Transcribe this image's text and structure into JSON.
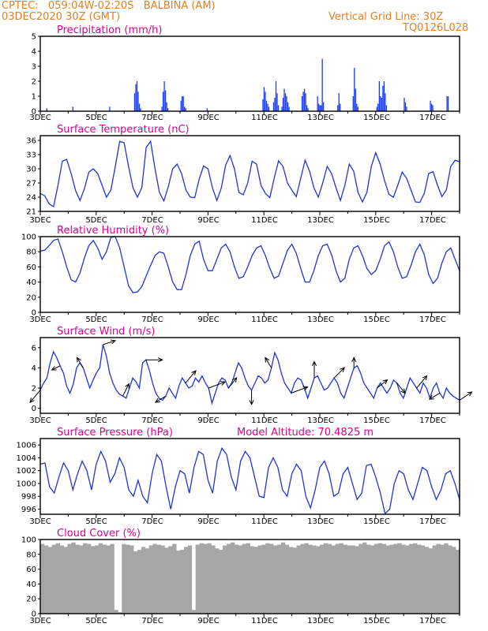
{
  "header": {
    "line1": "CPTEC:   059:04W-02:20S   BALBINA (AM)",
    "line2": "03DEC2020 30Z (GMT)",
    "grid_note": "Vertical Grid Line: 30Z",
    "code": "TQ0126L028"
  },
  "chart_data": [
    {
      "type": "bar",
      "title": "Precipitation (mm/h)",
      "x_labels": [
        "3DEC",
        "5DEC",
        "7DEC",
        "9DEC",
        "11DEC",
        "13DEC",
        "15DEC",
        "17DEC"
      ],
      "y_ticks": [
        0,
        1,
        2,
        3,
        4,
        5
      ],
      "ylim": [
        0,
        5
      ],
      "color": "#1a3cff",
      "values": [
        0,
        0,
        0,
        0,
        0,
        0.2,
        0,
        0,
        0,
        0,
        0,
        0,
        0,
        0,
        0,
        0,
        0,
        0,
        0,
        0,
        0,
        0,
        0,
        0,
        0,
        0,
        0,
        0.3,
        0,
        0,
        0,
        0,
        0,
        0,
        0,
        0,
        0,
        0,
        0,
        0,
        0,
        0,
        0,
        0,
        0,
        0,
        0,
        0,
        0,
        0,
        0,
        0,
        0,
        0,
        0,
        0,
        0,
        0,
        0.3,
        0,
        0,
        0,
        0,
        0,
        0,
        0,
        0,
        0,
        0,
        0,
        0,
        0,
        0,
        0,
        0,
        0,
        0,
        0,
        0,
        1.2,
        1.8,
        2.0,
        1.3,
        0.5,
        0.2,
        0,
        0,
        0,
        0,
        0,
        0,
        0,
        0,
        0,
        0,
        0,
        0,
        0,
        0,
        0,
        0,
        0,
        0.3,
        1.3,
        2.0,
        1.4,
        0.6,
        0.2,
        0,
        0,
        0,
        0,
        0,
        0,
        0,
        0,
        0,
        0,
        0.7,
        1.0,
        1.0,
        0.3,
        0.2,
        0,
        0,
        0,
        0,
        0,
        0,
        0,
        0,
        0,
        0,
        0,
        0,
        0,
        0,
        0,
        0,
        0,
        0.2,
        0,
        0,
        0,
        0,
        0,
        0,
        0,
        0,
        0,
        0,
        0,
        0,
        0,
        0,
        0,
        0,
        0,
        0,
        0,
        0,
        0,
        0,
        0,
        0,
        0,
        0,
        0,
        0,
        0,
        0,
        0,
        0,
        0,
        0,
        0,
        0,
        0,
        0,
        0,
        0,
        0,
        0,
        0,
        0,
        0,
        0,
        0.8,
        1.6,
        1.3,
        0.7,
        0.5,
        0.3,
        0,
        0,
        0,
        0.6,
        0.9,
        2.0,
        1.2,
        0.4,
        0,
        0,
        0.3,
        0.9,
        1.5,
        1.2,
        1.0,
        0.6,
        0.3,
        0,
        0,
        0,
        0,
        0,
        0,
        0,
        0,
        0,
        0,
        1.0,
        1.3,
        1.5,
        1.2,
        0.4,
        0.2,
        0,
        0,
        0,
        0,
        0,
        0,
        0,
        1.0,
        0.5,
        0.4,
        0.4,
        3.5,
        0.6,
        0,
        0,
        0,
        0,
        0,
        0,
        0,
        0,
        0,
        0,
        0,
        0.4,
        1.2,
        0.5,
        0,
        0,
        0,
        0,
        0,
        0,
        0,
        0,
        0,
        0,
        1.0,
        2.9,
        1.5,
        0.5,
        0.3,
        0,
        0,
        0,
        0,
        0,
        0,
        0,
        0,
        0,
        0,
        0,
        0,
        0,
        0,
        0,
        0.3,
        0.5,
        2.0,
        1.0,
        0.9,
        1.7,
        2.0,
        1.2,
        0.4,
        0,
        0,
        0,
        0,
        0,
        0,
        0,
        0,
        0,
        0,
        0,
        0,
        0,
        0,
        0.9,
        0.6,
        0.3,
        0,
        0,
        0,
        0,
        0,
        0,
        0,
        0,
        0,
        0,
        0,
        0,
        0,
        0,
        0,
        0,
        0,
        0,
        0,
        0.7,
        0.5,
        0.4,
        0,
        0,
        0,
        0,
        0,
        0,
        0,
        0,
        0,
        0,
        0,
        1.0,
        1.0,
        0,
        0,
        0,
        0,
        0,
        0,
        0,
        0,
        0
      ]
    },
    {
      "type": "line",
      "title": "Surface Temperature (nC)",
      "x_labels": [
        "3DEC",
        "5DEC",
        "7DEC",
        "9DEC",
        "11DEC",
        "13DEC",
        "15DEC",
        "17DEC"
      ],
      "y_ticks": [
        21,
        24,
        27,
        30,
        33,
        36
      ],
      "ylim": [
        21,
        37
      ],
      "color": "#2233dd",
      "values": [
        24.8,
        24.3,
        22.6,
        22.0,
        26.5,
        31.6,
        32.0,
        29.0,
        25.4,
        23.3,
        25.8,
        29.3,
        30.0,
        29.0,
        26.5,
        24.0,
        25.5,
        30.5,
        35.8,
        35.5,
        30.5,
        26.0,
        24.0,
        26.0,
        34.5,
        35.8,
        30.0,
        25.0,
        23.2,
        26.2,
        30.0,
        31.0,
        29.0,
        25.5,
        24.0,
        23.9,
        27.8,
        30.6,
        30.0,
        26.0,
        23.3,
        25.9,
        30.8,
        32.8,
        30.0,
        25.0,
        24.5,
        27.0,
        31.6,
        31.0,
        26.5,
        24.8,
        23.9,
        28.0,
        31.7,
        30.5,
        27.0,
        25.5,
        24.1,
        28.0,
        31.8,
        29.5,
        26.0,
        24.0,
        27.0,
        30.5,
        29.0,
        26.0,
        23.3,
        26.5,
        31.0,
        29.5,
        25.0,
        23.0,
        25.0,
        30.5,
        33.4,
        31.0,
        27.5,
        24.6,
        24.0,
        26.5,
        29.3,
        28.0,
        25.5,
        23.0,
        22.9,
        24.8,
        29.0,
        29.4,
        26.5,
        24.1,
        25.5,
        30.5,
        31.8,
        31.5
      ]
    },
    {
      "type": "line",
      "title": "Relative Humidity (%)",
      "x_labels": [
        "3DEC",
        "5DEC",
        "7DEC",
        "9DEC",
        "11DEC",
        "13DEC",
        "15DEC",
        "17DEC"
      ],
      "y_ticks": [
        0,
        20,
        40,
        60,
        80,
        100
      ],
      "ylim": [
        0,
        100
      ],
      "color": "#2233dd",
      "values": [
        81,
        82,
        88,
        95,
        97,
        80,
        60,
        43,
        40,
        52,
        72,
        88,
        95,
        85,
        70,
        80,
        99,
        100,
        85,
        60,
        35,
        26,
        27,
        34,
        48,
        62,
        75,
        80,
        78,
        60,
        40,
        30,
        30,
        50,
        75,
        90,
        94,
        70,
        55,
        55,
        70,
        85,
        90,
        80,
        60,
        45,
        47,
        60,
        75,
        85,
        88,
        75,
        58,
        45,
        48,
        65,
        82,
        90,
        78,
        58,
        40,
        40,
        55,
        75,
        88,
        90,
        76,
        55,
        40,
        45,
        70,
        85,
        88,
        75,
        58,
        50,
        55,
        70,
        88,
        93,
        80,
        60,
        45,
        47,
        62,
        80,
        90,
        76,
        50,
        38,
        45,
        65,
        80,
        85,
        70,
        55
      ]
    },
    {
      "type": "line",
      "title": "Surface Wind (m/s)",
      "x_labels": [
        "3DEC",
        "5DEC",
        "7DEC",
        "9DEC",
        "11DEC",
        "13DEC",
        "15DEC",
        "17DEC"
      ],
      "y_ticks": [
        0,
        2,
        4,
        6
      ],
      "ylim": [
        -0.5,
        7
      ],
      "color": "#2233dd",
      "values": [
        1.8,
        2.5,
        3.0,
        4.5,
        5.6,
        5.0,
        4.2,
        3.5,
        2.2,
        1.5,
        2.4,
        4.0,
        4.5,
        4.0,
        3.0,
        2.0,
        2.8,
        3.5,
        4.0,
        6.3,
        5.2,
        3.5,
        2.5,
        1.8,
        1.4,
        1.2,
        1.0,
        2.0,
        3.0,
        2.6,
        2.0,
        4.5,
        4.8,
        3.8,
        2.5,
        1.5,
        1.0,
        0.8,
        1.2,
        2.0,
        1.5,
        1.0,
        2.2,
        3.0,
        2.5,
        2.0,
        2.2,
        3.0,
        2.6,
        3.2,
        2.5,
        2.0,
        0.5,
        1.5,
        2.5,
        3.0,
        2.8,
        2.0,
        2.5,
        3.5,
        4.5,
        4.0,
        3.0,
        2.2,
        1.8,
        2.5,
        3.2,
        3.0,
        2.5,
        2.8,
        4.0,
        5.5,
        4.8,
        3.5,
        2.5,
        2.0,
        1.5,
        2.5,
        3.0,
        2.8,
        2.0,
        1.0,
        2.0,
        3.0,
        3.2,
        2.5,
        1.8,
        2.0,
        2.5,
        3.0,
        2.5,
        1.5,
        1.0,
        2.0,
        3.0,
        4.0,
        4.2,
        3.5,
        2.5,
        2.0,
        1.5,
        1.0,
        2.0,
        2.5,
        2.0,
        1.5,
        2.0,
        2.8,
        2.5,
        1.5,
        1.0,
        2.0,
        3.0,
        2.5,
        2.0,
        1.5,
        2.5,
        2.0,
        1.0,
        2.0,
        2.5,
        1.5,
        1.0,
        2.0,
        1.5,
        1.2,
        1.0,
        0.8
      ],
      "vectors": [
        [
          -0.5,
          -0.6
        ],
        [
          -0.4,
          -0.2
        ],
        [
          -0.3,
          0.5
        ],
        [
          0.6,
          0.2
        ],
        [
          0.3,
          0.6
        ],
        [
          0.8,
          0.0
        ],
        [
          -0.5,
          -0.3
        ],
        [
          0.5,
          0.6
        ],
        [
          0.8,
          0.3
        ],
        [
          0.4,
          0.5
        ],
        [
          0.0,
          -0.7
        ],
        [
          -0.3,
          0.5
        ],
        [
          0.8,
          0.3
        ],
        [
          0.0,
          0.8
        ],
        [
          0.5,
          0.5
        ],
        [
          0.0,
          0.5
        ],
        [
          0.5,
          0.4
        ],
        [
          0.4,
          -0.5
        ],
        [
          0.5,
          0.6
        ],
        [
          -0.5,
          -0.3
        ],
        [
          0.6,
          0.4
        ]
      ]
    },
    {
      "type": "line",
      "title": "Surface Pressure (hPa)",
      "subtitle": "Model Altitude: 70.4825 m",
      "x_labels": [
        "3DEC",
        "5DEC",
        "7DEC",
        "9DEC",
        "11DEC",
        "13DEC",
        "15DEC",
        "17DEC"
      ],
      "y_ticks": [
        996,
        998,
        1000,
        1002,
        1004,
        1006
      ],
      "ylim": [
        995.2,
        1007
      ],
      "color": "#2233dd",
      "values": [
        1003.0,
        1003.2,
        999.5,
        998.5,
        1001.0,
        1003.2,
        1002.0,
        999.0,
        1001.5,
        1003.5,
        1002.0,
        999.0,
        1003.0,
        1005.0,
        1003.5,
        1000.2,
        1001.5,
        1004.0,
        1002.5,
        999.0,
        998.0,
        1000.5,
        998.0,
        997.0,
        1001.5,
        1004.5,
        1003.5,
        999.5,
        996.0,
        999.5,
        1002.0,
        1001.5,
        998.5,
        1002.5,
        1005.0,
        1004.5,
        1000.5,
        998.5,
        1003.5,
        1005.5,
        1004.5,
        1001.0,
        999.0,
        1003.5,
        1005.0,
        1004.0,
        1001.0,
        998.0,
        997.8,
        1002.5,
        1004.0,
        1002.5,
        999.0,
        998.0,
        1001.5,
        1003.0,
        1002.0,
        998.0,
        996.2,
        999.0,
        1002.5,
        1003.5,
        1001.5,
        998.0,
        998.5,
        1001.5,
        1002.5,
        1000.0,
        997.5,
        998.5,
        1002.8,
        1003.0,
        1001.0,
        998.5,
        995.3,
        996.0,
        1000.0,
        1002.0,
        1001.5,
        999.0,
        997.5,
        1000.0,
        1002.5,
        1002.0,
        999.5,
        997.5,
        999.0,
        1001.5,
        1002.0,
        1000.0,
        997.5
      ]
    },
    {
      "type": "bar",
      "title": "Cloud Cover (%)",
      "x_labels": [
        "3DEC",
        "5DEC",
        "7DEC",
        "9DEC",
        "11DEC",
        "13DEC",
        "15DEC",
        "17DEC"
      ],
      "y_ticks": [
        0,
        20,
        40,
        60,
        80,
        100
      ],
      "ylim": [
        0,
        100
      ],
      "color": "#a6a6a6",
      "values": [
        94,
        92,
        90,
        93,
        95,
        92,
        90,
        94,
        96,
        93,
        92,
        95,
        94,
        91,
        92,
        95,
        93,
        92,
        94,
        5,
        2,
        94,
        93,
        92,
        84,
        86,
        90,
        88,
        92,
        94,
        93,
        92,
        89,
        91,
        94,
        85,
        86,
        90,
        92,
        5,
        93,
        95,
        94,
        95,
        92,
        88,
        86,
        92,
        94,
        96,
        93,
        92,
        94,
        95,
        91,
        90,
        92,
        93,
        95,
        94,
        92,
        93,
        96,
        93,
        90,
        89,
        92,
        94,
        95,
        93,
        92,
        91,
        93,
        95,
        94,
        92,
        94,
        95,
        93,
        92,
        92,
        91,
        94,
        96,
        93,
        92,
        94,
        95,
        94,
        92,
        93,
        94,
        95,
        93,
        92,
        94,
        95,
        93,
        92,
        90,
        88,
        92,
        94,
        93,
        95,
        92,
        90,
        86
      ]
    }
  ]
}
